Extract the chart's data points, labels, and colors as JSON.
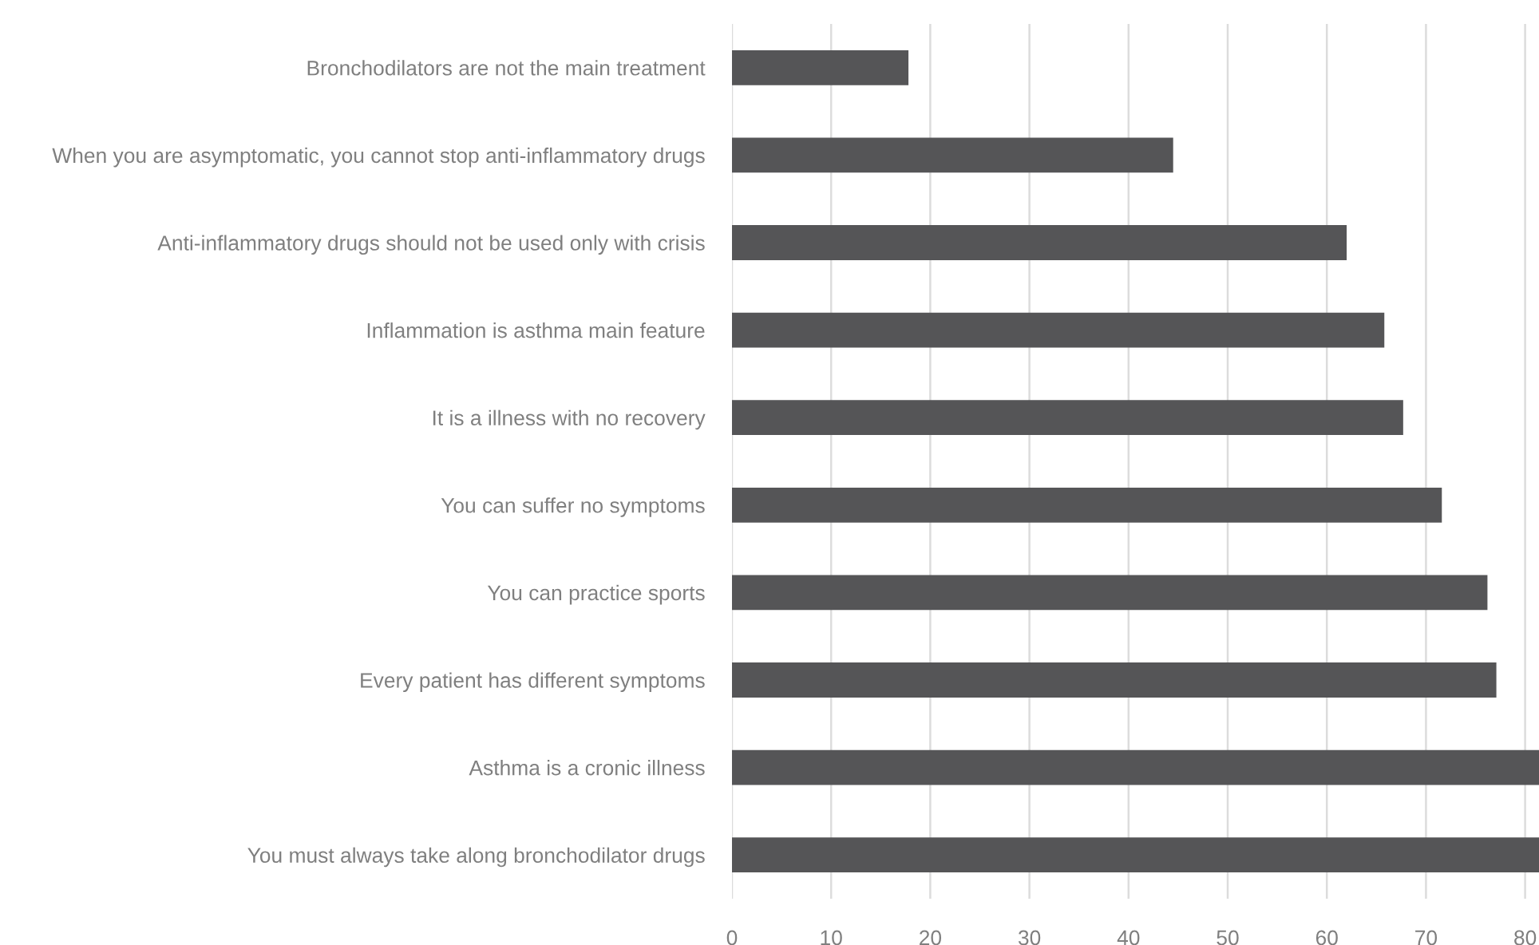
{
  "chart_data": {
    "type": "bar",
    "orientation": "horizontal",
    "categories": [
      "Bronchodilators are not the main treatment",
      "When you are asymptomatic, you cannot stop anti-inflammatory drugs",
      "Anti-inflammatory drugs should not be used only with crisis",
      "Inflammation is asthma main feature",
      "It is a illness with no recovery",
      "You can suffer no symptoms",
      "You can practice sports",
      "Every patient has different symptoms",
      "Asthma is a cronic illness",
      "You must always take along bronchodilator drugs"
    ],
    "values": [
      17.8,
      44.5,
      62.0,
      65.8,
      67.7,
      71.6,
      76.2,
      77.1,
      81.4,
      81.4
    ],
    "color": "#555557",
    "xlim": [
      0,
      81.4
    ],
    "xticks": [
      0,
      10,
      20,
      30,
      40,
      50,
      60,
      70,
      80
    ],
    "grid": "x"
  }
}
